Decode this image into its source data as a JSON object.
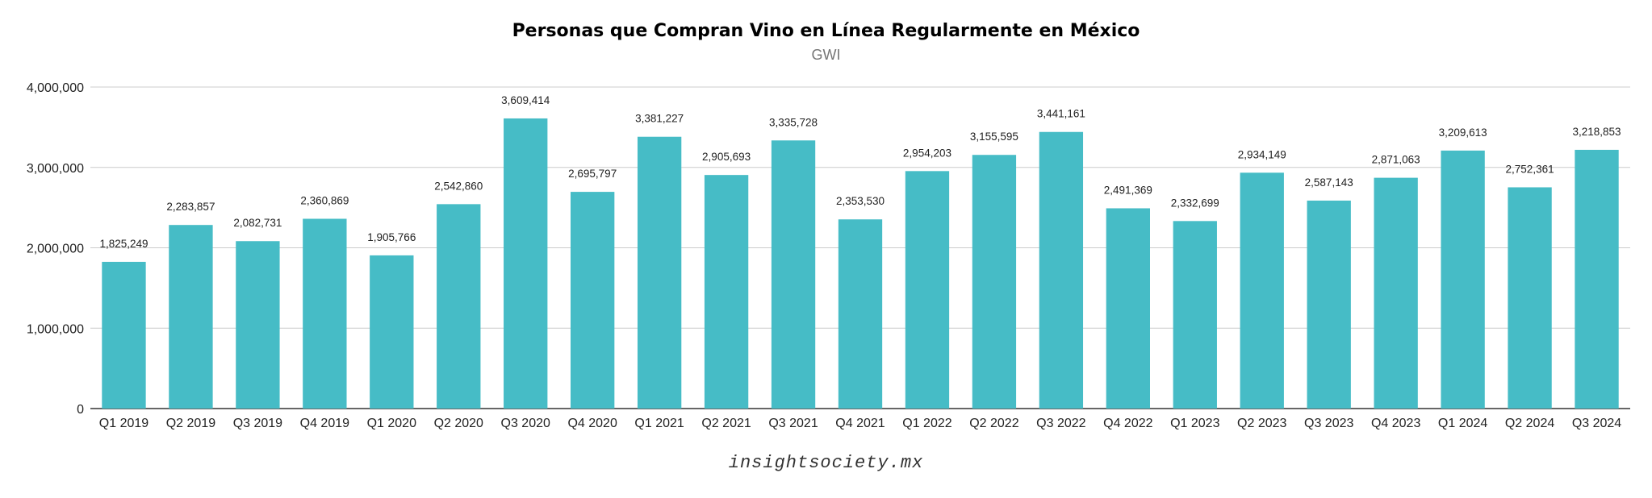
{
  "chart_data": {
    "type": "bar",
    "title": "Personas que Compran Vino en Línea Regularmente en México",
    "subtitle": "GWI",
    "xlabel": "",
    "ylabel": "",
    "ylim": [
      0,
      4000000
    ],
    "yticks": [
      0,
      1000000,
      2000000,
      3000000,
      4000000
    ],
    "ytick_labels": [
      "0",
      "1,000,000",
      "2,000,000",
      "3,000,000",
      "4,000,000"
    ],
    "grid": true,
    "bar_color": "#46bcc6",
    "categories": [
      "Q1 2019",
      "Q2 2019",
      "Q3 2019",
      "Q4 2019",
      "Q1 2020",
      "Q2 2020",
      "Q3 2020",
      "Q4 2020",
      "Q1 2021",
      "Q2 2021",
      "Q3 2021",
      "Q4 2021",
      "Q1 2022",
      "Q2 2022",
      "Q3 2022",
      "Q4 2022",
      "Q1 2023",
      "Q2 2023",
      "Q3 2023",
      "Q4 2023",
      "Q1 2024",
      "Q2 2024",
      "Q3 2024"
    ],
    "values": [
      1825249,
      2283857,
      2082731,
      2360869,
      1905766,
      2542860,
      3609414,
      2695797,
      3381227,
      2905693,
      3335728,
      2353530,
      2954203,
      3155595,
      3441161,
      2491369,
      2332699,
      2934149,
      2587143,
      2871063,
      3209613,
      2752361,
      3218853
    ],
    "data_labels": [
      "1,825,249",
      "2,283,857",
      "2,082,731",
      "2,360,869",
      "1,905,766",
      "2,542,860",
      "3,609,414",
      "2,695,797",
      "3,381,227",
      "2,905,693",
      "3,335,728",
      "2,353,530",
      "2,954,203",
      "3,155,595",
      "3,441,161",
      "2,491,369",
      "2,332,699",
      "2,934,149",
      "2,587,143",
      "2,871,063",
      "3,209,613",
      "2,752,361",
      "3,218,853"
    ]
  },
  "footer": {
    "credit": "insightsociety.mx"
  }
}
